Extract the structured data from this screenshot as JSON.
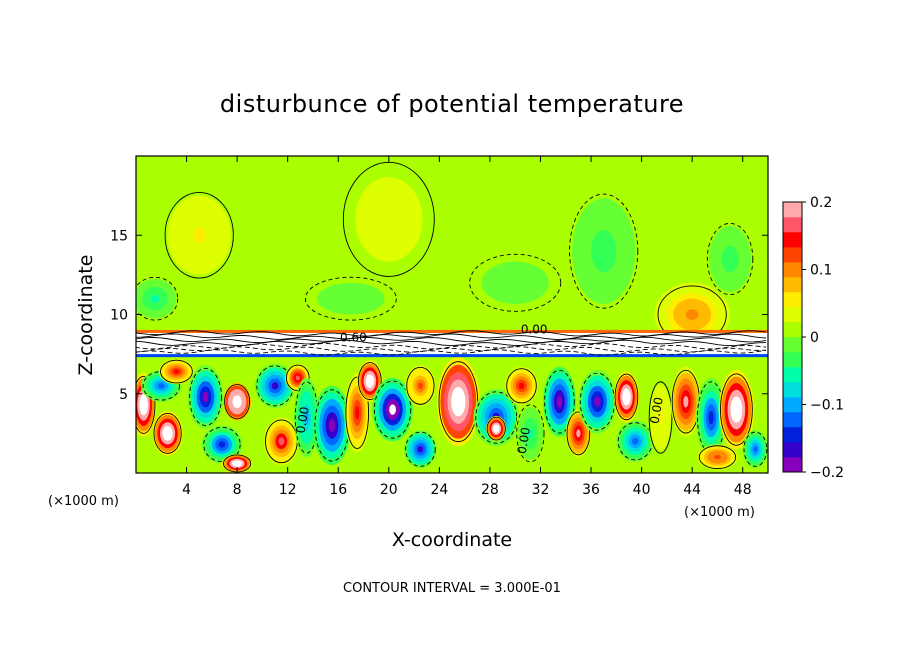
{
  "chart_data": {
    "type": "heatmap",
    "title": "disturbunce of potential temperature",
    "xlabel": "X-coordinate",
    "ylabel": "Z-coordinate",
    "x_unit_left": "(×1000 m)",
    "x_unit_right": "(×1000 m)",
    "footer": "CONTOUR INTERVAL = 3.000E-01",
    "xlim": [
      0,
      50
    ],
    "ylim": [
      0,
      20
    ],
    "x_ticks": [
      4,
      8,
      12,
      16,
      20,
      24,
      28,
      32,
      36,
      40,
      44,
      48
    ],
    "y_ticks": [
      5,
      10,
      15
    ],
    "colorbar": {
      "min": -0.2,
      "max": 0.2,
      "ticks": [
        {
          "value": 0.2,
          "label": "0.2"
        },
        {
          "value": 0.1,
          "label": "0.1"
        },
        {
          "value": 0,
          "label": "0"
        },
        {
          "value": -0.1,
          "label": "−0.1"
        },
        {
          "value": -0.2,
          "label": "−0.2"
        }
      ],
      "colors": [
        "#8800bb",
        "#3300cc",
        "#0022dd",
        "#0066ff",
        "#00aaff",
        "#00dddd",
        "#00ffaa",
        "#33ff55",
        "#66ff33",
        "#aaff00",
        "#ddff00",
        "#ffee00",
        "#ffbb00",
        "#ff8800",
        "#ff4400",
        "#ff0000",
        "#ff5566",
        "#ffaaaa"
      ]
    },
    "background_value": 0.01,
    "features": [
      {
        "x": 0.6,
        "z": 4.3,
        "rx": 1.0,
        "rz": 2.0,
        "value": 0.3
      },
      {
        "x": 2.0,
        "z": 5.5,
        "rx": 1.6,
        "rz": 1.0,
        "value": -0.12
      },
      {
        "x": 2.5,
        "z": 2.5,
        "rx": 1.2,
        "rz": 1.4,
        "value": 0.3
      },
      {
        "x": 3.2,
        "z": 6.4,
        "rx": 1.4,
        "rz": 0.8,
        "value": 0.15
      },
      {
        "x": 5.5,
        "z": 4.8,
        "rx": 1.4,
        "rz": 2.0,
        "value": -0.18
      },
      {
        "x": 6.8,
        "z": 1.8,
        "rx": 1.6,
        "rz": 1.2,
        "value": -0.14
      },
      {
        "x": 8.0,
        "z": 4.5,
        "rx": 1.1,
        "rz": 1.2,
        "value": 0.35
      },
      {
        "x": 8.0,
        "z": 0.6,
        "rx": 1.2,
        "rz": 0.6,
        "value": 0.3
      },
      {
        "x": 11.0,
        "z": 5.5,
        "rx": 1.6,
        "rz": 1.4,
        "value": -0.16
      },
      {
        "x": 11.5,
        "z": 2.0,
        "rx": 1.4,
        "rz": 1.5,
        "value": 0.16
      },
      {
        "x": 12.8,
        "z": 6.0,
        "rx": 1.0,
        "rz": 0.9,
        "value": 0.17
      },
      {
        "x": 13.5,
        "z": 3.5,
        "rx": 1.0,
        "rz": 2.5,
        "value": -0.1
      },
      {
        "x": 15.5,
        "z": 3.0,
        "rx": 1.5,
        "rz": 2.5,
        "value": -0.2
      },
      {
        "x": 17.5,
        "z": 3.8,
        "rx": 1.0,
        "rz": 2.5,
        "value": 0.15
      },
      {
        "x": 18.5,
        "z": 5.8,
        "rx": 1.0,
        "rz": 1.3,
        "value": 0.3
      },
      {
        "x": 20.3,
        "z": 4.0,
        "rx": 1.6,
        "rz": 2.0,
        "value": -0.22
      },
      {
        "x": 22.5,
        "z": 1.5,
        "rx": 1.3,
        "rz": 1.2,
        "value": -0.16
      },
      {
        "x": 22.5,
        "z": 5.5,
        "rx": 1.2,
        "rz": 1.3,
        "value": 0.12
      },
      {
        "x": 25.5,
        "z": 4.5,
        "rx": 1.7,
        "rz": 2.8,
        "value": 0.32
      },
      {
        "x": 28.5,
        "z": 3.5,
        "rx": 1.8,
        "rz": 1.8,
        "value": -0.16
      },
      {
        "x": 28.5,
        "z": 2.8,
        "rx": 0.8,
        "rz": 0.8,
        "value": 0.3
      },
      {
        "x": 30.5,
        "z": 5.5,
        "rx": 1.3,
        "rz": 1.2,
        "value": 0.14
      },
      {
        "x": 31.2,
        "z": 2.5,
        "rx": 1.2,
        "rz": 2.0,
        "value": -0.05
      },
      {
        "x": 33.5,
        "z": 4.5,
        "rx": 1.3,
        "rz": 2.2,
        "value": -0.2
      },
      {
        "x": 35.0,
        "z": 2.5,
        "rx": 1.0,
        "rz": 1.5,
        "value": 0.18
      },
      {
        "x": 36.5,
        "z": 4.5,
        "rx": 1.5,
        "rz": 2.0,
        "value": -0.18
      },
      {
        "x": 38.8,
        "z": 4.8,
        "rx": 1.0,
        "rz": 1.6,
        "value": 0.3
      },
      {
        "x": 39.5,
        "z": 2.0,
        "rx": 1.5,
        "rz": 1.3,
        "value": -0.12
      },
      {
        "x": 41.5,
        "z": 3.5,
        "rx": 1.0,
        "rz": 2.5,
        "value": 0.05
      },
      {
        "x": 43.5,
        "z": 4.5,
        "rx": 1.2,
        "rz": 2.2,
        "value": 0.18
      },
      {
        "x": 45.5,
        "z": 3.5,
        "rx": 1.2,
        "rz": 2.5,
        "value": -0.14
      },
      {
        "x": 47.5,
        "z": 4.0,
        "rx": 1.4,
        "rz": 2.5,
        "value": 0.3
      },
      {
        "x": 46.0,
        "z": 1.0,
        "rx": 1.6,
        "rz": 0.8,
        "value": 0.13
      },
      {
        "x": 49.0,
        "z": 1.5,
        "rx": 1.0,
        "rz": 1.2,
        "value": -0.13
      },
      {
        "x": 5.0,
        "z": 15.0,
        "rx": 3.0,
        "rz": 3.0,
        "value": 0.05
      },
      {
        "x": 20.0,
        "z": 16.0,
        "rx": 4.0,
        "rz": 4.0,
        "value": 0.04
      },
      {
        "x": 44.0,
        "z": 10.0,
        "rx": 3.0,
        "rz": 2.0,
        "value": 0.1
      },
      {
        "x": 47.0,
        "z": 13.5,
        "rx": 2.0,
        "rz": 2.5,
        "value": -0.03
      },
      {
        "x": 37.0,
        "z": 14.0,
        "rx": 3.0,
        "rz": 4.0,
        "value": -0.03
      },
      {
        "x": 30.0,
        "z": 12.0,
        "rx": 4.0,
        "rz": 2.0,
        "value": -0.02
      },
      {
        "x": 1.5,
        "z": 11.0,
        "rx": 2.0,
        "rz": 1.5,
        "value": -0.05
      },
      {
        "x": 17.0,
        "z": 11.0,
        "rx": 4.0,
        "rz": 1.5,
        "value": -0.02
      },
      {
        "x": 43.0,
        "z": 8.3,
        "rx": 5.0,
        "rz": 0.4,
        "value": 0.18
      }
    ],
    "inversion_layer": {
      "z_top": 8.9,
      "z_bottom": 7.5
    },
    "contour_labels": [
      {
        "x": 17.2,
        "z": 8.3,
        "text": "0.60"
      },
      {
        "x": 31.5,
        "z": 8.8,
        "text": "0.00"
      },
      {
        "x": 13.5,
        "z": 3.3,
        "text": "0.00"
      },
      {
        "x": 31.0,
        "z": 2.0,
        "text": "0.00"
      },
      {
        "x": 41.5,
        "z": 3.9,
        "text": "0.00"
      }
    ]
  }
}
